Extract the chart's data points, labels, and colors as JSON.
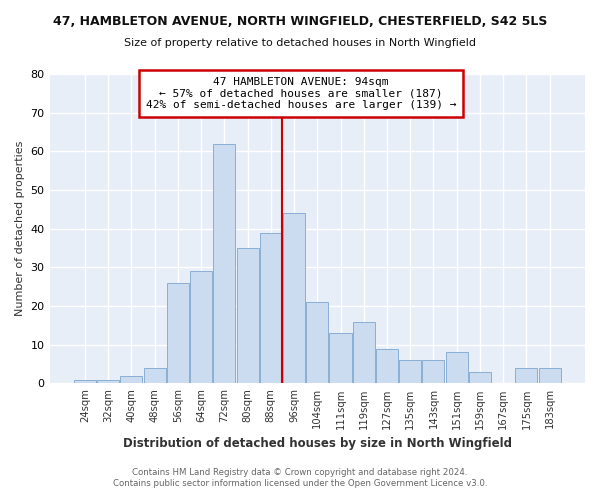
{
  "title": "47, HAMBLETON AVENUE, NORTH WINGFIELD, CHESTERFIELD, S42 5LS",
  "subtitle": "Size of property relative to detached houses in North Wingfield",
  "xlabel": "Distribution of detached houses by size in North Wingfield",
  "ylabel": "Number of detached properties",
  "categories": [
    "24sqm",
    "32sqm",
    "40sqm",
    "48sqm",
    "56sqm",
    "64sqm",
    "72sqm",
    "80sqm",
    "88sqm",
    "96sqm",
    "104sqm",
    "111sqm",
    "119sqm",
    "127sqm",
    "135sqm",
    "143sqm",
    "151sqm",
    "159sqm",
    "167sqm",
    "175sqm",
    "183sqm"
  ],
  "values": [
    1,
    1,
    2,
    4,
    26,
    29,
    62,
    35,
    39,
    44,
    21,
    13,
    16,
    9,
    6,
    6,
    8,
    3,
    0,
    4,
    4
  ],
  "bar_color": "#ccdcf0",
  "bar_edge_color": "#8aafd4",
  "vline_color": "#cc0000",
  "annotation_title": "47 HAMBLETON AVENUE: 94sqm",
  "annotation_line1": "← 57% of detached houses are smaller (187)",
  "annotation_line2": "42% of semi-detached houses are larger (139) →",
  "annotation_box_edge": "#cc0000",
  "ylim": [
    0,
    80
  ],
  "footer1": "Contains HM Land Registry data © Crown copyright and database right 2024.",
  "footer2": "Contains public sector information licensed under the Open Government Licence v3.0.",
  "background_color": "#ffffff",
  "plot_bg_color": "#e8eef8",
  "grid_color": "#ffffff"
}
